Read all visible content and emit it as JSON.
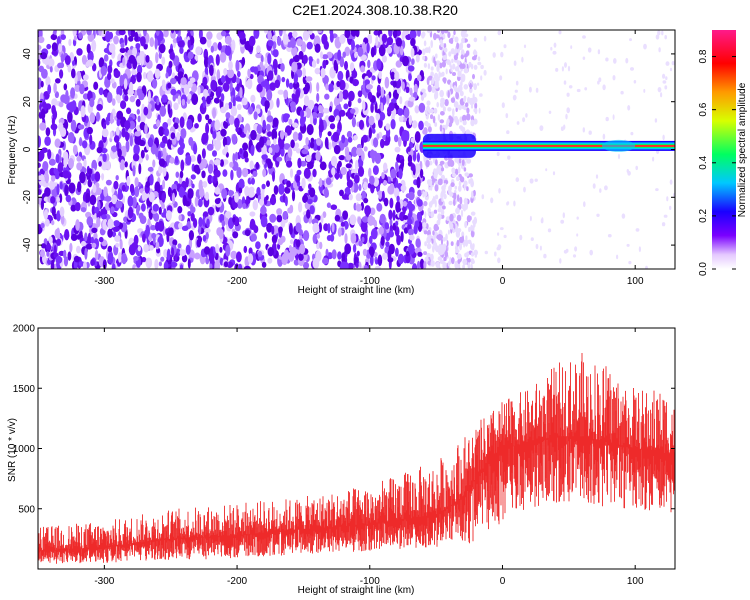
{
  "title": "C2E1.2024.308.10.38.R20",
  "colors": {
    "noise": "#6a00e8",
    "snr": "#ee2a2a",
    "tone": "#ff2a2a"
  },
  "chart_data": [
    {
      "type": "heatmap",
      "title": "",
      "xlabel": "Height of straight line (km)",
      "ylabel": "Frequency (Hz)",
      "xlim": [
        -350,
        130
      ],
      "ylim": [
        -50,
        50
      ],
      "xticks": [
        -300,
        -200,
        -100,
        0,
        100
      ],
      "yticks": [
        -40,
        -20,
        0,
        20,
        40
      ],
      "colorbar": {
        "label": "Normalized spectral amplitude",
        "range": [
          0,
          0.9
        ],
        "ticks": [
          0.0,
          0.2,
          0.4,
          0.6,
          0.8
        ],
        "colormap": "rainbow"
      },
      "features": {
        "broadband_noise_x_range": [
          -350,
          -60
        ],
        "noise_taper_x_range": [
          -60,
          -20
        ],
        "narrowband_tone_frequency_hz": 1.5,
        "tone_x_range": [
          -60,
          130
        ],
        "tone_onset_x": -55
      }
    },
    {
      "type": "line",
      "title": "",
      "xlabel": "Height of straight line (km)",
      "ylabel": "SNR (10 * v/v)",
      "xlim": [
        -350,
        130
      ],
      "ylim": [
        0,
        2000
      ],
      "xticks": [
        -300,
        -200,
        -100,
        0,
        100
      ],
      "yticks": [
        500,
        1000,
        1500,
        2000
      ],
      "series": [
        {
          "x": [
            -350,
            -300,
            -250,
            -200,
            -150,
            -100,
            -50,
            -40,
            -30,
            -10,
            0,
            20,
            40,
            60,
            80,
            100,
            130
          ],
          "lower": [
            40,
            50,
            70,
            90,
            120,
            150,
            180,
            250,
            200,
            250,
            400,
            500,
            550,
            550,
            500,
            500,
            450
          ],
          "upper": [
            350,
            400,
            500,
            550,
            600,
            700,
            900,
            1000,
            1100,
            1300,
            1400,
            1500,
            1700,
            1800,
            1700,
            1500,
            1500
          ],
          "center": [
            150,
            180,
            250,
            280,
            330,
            370,
            450,
            520,
            600,
            900,
            1000,
            1050,
            1100,
            1100,
            1050,
            1000,
            950
          ]
        }
      ]
    }
  ]
}
